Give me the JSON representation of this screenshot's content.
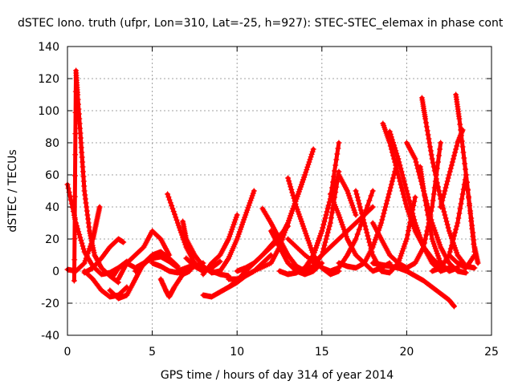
{
  "chart_data": {
    "type": "scatter",
    "title": "dSTEC Iono. truth (ufpr, Lon=310, Lat=-25, h=927): STEC-STEC_elemax in phase cont",
    "xlabel": "GPS time / hours of day 314 of year 2014",
    "ylabel": "dSTEC  / TECUs",
    "xlim": [
      0,
      25
    ],
    "ylim": [
      -40,
      140
    ],
    "xticks": [
      0,
      5,
      10,
      15,
      20,
      25
    ],
    "yticks": [
      -40,
      -20,
      0,
      20,
      40,
      60,
      80,
      100,
      120,
      140
    ],
    "grid": true,
    "marker": "+",
    "colors": {
      "series": "#ff0000",
      "grid": "#a0a0a0",
      "axes": "#000000"
    },
    "series": [
      {
        "x": [
          0.0,
          0.5,
          1.0,
          1.5,
          2.0,
          2.5,
          3.0,
          3.5
        ],
        "y": [
          54,
          30,
          12,
          3,
          -2,
          -1,
          2,
          6
        ]
      },
      {
        "x": [
          0.4,
          0.5,
          0.6,
          0.8,
          1.0,
          1.3,
          1.6,
          2.0,
          2.5,
          3.0
        ],
        "y": [
          -6,
          125,
          110,
          80,
          50,
          25,
          10,
          2,
          -3,
          -7
        ]
      },
      {
        "x": [
          0.0,
          0.5,
          1.0,
          1.5,
          1.7,
          1.9
        ],
        "y": [
          1,
          0,
          5,
          20,
          30,
          40
        ]
      },
      {
        "x": [
          1.0,
          1.5,
          2.0,
          2.5,
          3.0,
          3.3
        ],
        "y": [
          -1,
          2,
          8,
          15,
          20,
          18
        ]
      },
      {
        "x": [
          1.0,
          1.5,
          2.0,
          2.5,
          3.0,
          3.5
        ],
        "y": [
          0,
          -5,
          -12,
          -16,
          -15,
          -10
        ]
      },
      {
        "x": [
          2.5,
          3.0,
          3.5,
          4.0,
          4.5,
          5.0
        ],
        "y": [
          -12,
          -17,
          -15,
          -5,
          5,
          10
        ]
      },
      {
        "x": [
          2.7,
          3.0,
          3.5
        ],
        "y": [
          -3,
          2,
          5
        ]
      },
      {
        "x": [
          3.0,
          3.5,
          4.0,
          4.5,
          5.0,
          5.5,
          6.0
        ],
        "y": [
          -5,
          5,
          10,
          15,
          25,
          20,
          10
        ]
      },
      {
        "x": [
          3.5,
          4.0,
          4.5,
          5.0,
          5.5,
          6.0,
          6.5
        ],
        "y": [
          5,
          2,
          5,
          8,
          9,
          6,
          2
        ]
      },
      {
        "x": [
          4.0,
          4.5,
          5.0,
          5.5,
          6.0,
          6.5
        ],
        "y": [
          0,
          4,
          10,
          12,
          8,
          3
        ]
      },
      {
        "x": [
          5.0,
          5.5,
          6.0,
          6.5,
          7.0,
          7.5,
          8.0
        ],
        "y": [
          5,
          3,
          0,
          -1,
          0,
          3,
          5
        ]
      },
      {
        "x": [
          5.9,
          6.5,
          7.0,
          7.5,
          8.0
        ],
        "y": [
          48,
          30,
          15,
          5,
          0
        ]
      },
      {
        "x": [
          5.5,
          5.8,
          6.0,
          6.3,
          6.8,
          7.2
        ],
        "y": [
          -5,
          -12,
          -16,
          -10,
          -2,
          0
        ]
      },
      {
        "x": [
          6.8,
          7.0,
          7.5,
          8.0,
          8.5,
          9.0
        ],
        "y": [
          31,
          20,
          10,
          3,
          -1,
          0
        ]
      },
      {
        "x": [
          6.5,
          7.0,
          7.5,
          8.0,
          8.5,
          9.0,
          9.5
        ],
        "y": [
          0,
          2,
          4,
          2,
          0,
          -2,
          -3
        ]
      },
      {
        "x": [
          7.0,
          7.5,
          8.0,
          8.5,
          9.0
        ],
        "y": [
          8,
          3,
          0,
          2,
          6
        ]
      },
      {
        "x": [
          8.0,
          8.5,
          9.0,
          9.5,
          10.0
        ],
        "y": [
          -2,
          5,
          10,
          20,
          35
        ]
      },
      {
        "x": [
          8.0,
          8.5,
          9.0,
          9.5,
          10.0,
          10.5
        ],
        "y": [
          -15,
          -16,
          -13,
          -10,
          -7,
          -3
        ]
      },
      {
        "x": [
          9.0,
          9.5,
          10.0,
          10.5,
          11.0
        ],
        "y": [
          0,
          8,
          20,
          35,
          50
        ]
      },
      {
        "x": [
          9.5,
          10.0,
          10.5,
          11.0,
          11.5,
          12.0
        ],
        "y": [
          -5,
          -5,
          -3,
          0,
          5,
          10
        ]
      },
      {
        "x": [
          9.5,
          10.0,
          10.5,
          11.0,
          11.5,
          12.0,
          12.5,
          13.0
        ],
        "y": [
          -10,
          -6,
          0,
          5,
          10,
          16,
          22,
          28
        ]
      },
      {
        "x": [
          10.0,
          10.5,
          11.0,
          11.5,
          12.0,
          12.5,
          13.0,
          13.5,
          14.0
        ],
        "y": [
          0,
          2,
          5,
          10,
          15,
          20,
          30,
          45,
          60
        ]
      },
      {
        "x": [
          10.0,
          11.0,
          12.0,
          12.5,
          13.0,
          13.5,
          14.0,
          14.5
        ],
        "y": [
          -5,
          0,
          5,
          15,
          30,
          45,
          60,
          76
        ]
      },
      {
        "x": [
          11.5,
          12.0,
          12.5,
          13.0,
          13.5,
          14.0
        ],
        "y": [
          39,
          30,
          20,
          10,
          3,
          0
        ]
      },
      {
        "x": [
          12.0,
          12.5,
          13.0,
          13.5,
          14.0,
          14.5,
          15.0
        ],
        "y": [
          25,
          15,
          5,
          0,
          -2,
          0,
          5
        ]
      },
      {
        "x": [
          12.5,
          13.0,
          13.5,
          14.0,
          14.5,
          15.0,
          15.5,
          16.0
        ],
        "y": [
          0,
          -2,
          -1,
          2,
          10,
          25,
          45,
          80
        ]
      },
      {
        "x": [
          13.0,
          13.5,
          14.0,
          14.5,
          15.0,
          15.5,
          16.0
        ],
        "y": [
          58,
          40,
          25,
          10,
          2,
          -2,
          0
        ]
      },
      {
        "x": [
          13.5,
          14.0,
          14.5,
          15.0,
          15.5,
          16.0
        ],
        "y": [
          0,
          0,
          3,
          10,
          30,
          62
        ]
      },
      {
        "x": [
          14.0,
          14.5,
          15.0,
          15.5,
          16.0,
          16.5,
          17.0
        ],
        "y": [
          0,
          10,
          25,
          45,
          60,
          50,
          35
        ]
      },
      {
        "x": [
          14.5,
          15.0,
          15.5,
          16.0,
          16.5,
          17.0,
          17.5,
          18.0
        ],
        "y": [
          5,
          10,
          15,
          20,
          25,
          30,
          35,
          40
        ]
      },
      {
        "x": [
          13.0,
          14.0,
          15.0,
          15.5,
          16.0,
          16.5,
          17.0,
          18.0
        ],
        "y": [
          20,
          10,
          2,
          0,
          2,
          10,
          20,
          50
        ]
      },
      {
        "x": [
          15.5,
          16.0,
          16.5,
          17.0,
          17.5,
          18.0,
          18.5,
          19.0
        ],
        "y": [
          48,
          35,
          20,
          10,
          5,
          0,
          2,
          5
        ]
      },
      {
        "x": [
          16.0,
          16.5,
          17.0,
          17.5,
          18.0,
          18.5,
          19.0,
          19.5
        ],
        "y": [
          5,
          3,
          2,
          5,
          15,
          30,
          50,
          70
        ]
      },
      {
        "x": [
          17.0,
          17.5,
          18.0,
          18.5,
          19.0,
          19.5,
          20.0,
          20.5
        ],
        "y": [
          50,
          30,
          10,
          0,
          -1,
          5,
          20,
          46
        ]
      },
      {
        "x": [
          18.0,
          18.5,
          19.0,
          19.5,
          20.0,
          20.5,
          21.0,
          21.5,
          22.0
        ],
        "y": [
          30,
          20,
          10,
          5,
          2,
          5,
          15,
          40,
          80
        ]
      },
      {
        "x": [
          18.6,
          19.0,
          19.5,
          20.0,
          20.5,
          21.0,
          21.5,
          22.0
        ],
        "y": [
          92,
          80,
          60,
          40,
          25,
          15,
          8,
          3
        ]
      },
      {
        "x": [
          18.0,
          18.5,
          19.0,
          19.5,
          20.0,
          20.5,
          21.0,
          21.5,
          22.0,
          22.5,
          22.8
        ],
        "y": [
          5,
          4,
          3,
          2,
          0,
          -3,
          -6,
          -10,
          -14,
          -18,
          -22
        ]
      },
      {
        "x": [
          19.0,
          19.5,
          20.0,
          20.5,
          21.0,
          21.5,
          22.0,
          22.5
        ],
        "y": [
          87,
          70,
          50,
          30,
          15,
          5,
          0,
          2
        ]
      },
      {
        "x": [
          20.0,
          20.5,
          21.0,
          21.5,
          22.0,
          22.5,
          23.0,
          23.5
        ],
        "y": [
          80,
          70,
          50,
          30,
          15,
          5,
          0,
          -1
        ]
      },
      {
        "x": [
          20.9,
          21.1,
          21.5,
          22.0,
          22.5,
          23.0,
          23.5,
          24.0
        ],
        "y": [
          108,
          95,
          70,
          45,
          25,
          10,
          3,
          2
        ]
      },
      {
        "x": [
          20.8,
          21.0,
          21.5,
          22.0,
          22.5,
          23.0
        ],
        "y": [
          65,
          50,
          20,
          5,
          0,
          2
        ]
      },
      {
        "x": [
          21.5,
          22.0,
          22.5,
          23.0,
          23.5,
          24.0
        ],
        "y": [
          0,
          2,
          10,
          30,
          60,
          12
        ]
      },
      {
        "x": [
          22.0,
          22.5,
          23.0,
          23.3
        ],
        "y": [
          40,
          60,
          80,
          88
        ]
      },
      {
        "x": [
          22.9,
          23.1,
          23.5,
          24.0,
          24.2
        ],
        "y": [
          110,
          95,
          60,
          15,
          5
        ]
      },
      {
        "x": [
          22.5,
          23.0,
          23.5,
          24.0
        ],
        "y": [
          10,
          5,
          2,
          10
        ]
      }
    ]
  }
}
